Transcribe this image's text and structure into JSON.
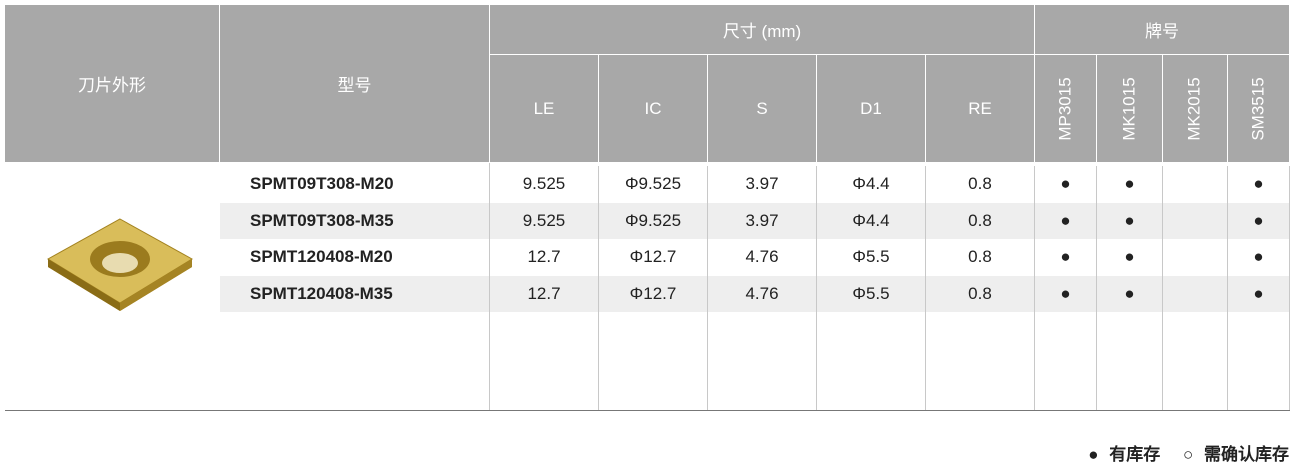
{
  "table": {
    "header": {
      "shape": "刀片外形",
      "model": "型号",
      "size_group": "尺寸 (mm)",
      "grade_group": "牌号",
      "size_columns": [
        "LE",
        "IC",
        "S",
        "D1",
        "RE"
      ],
      "grade_columns": [
        "MP3015",
        "MK1015",
        "MK2015",
        "SM3515"
      ]
    },
    "rows": [
      {
        "model": "SPMT09T308-M20",
        "sizes": [
          "9.525",
          "Φ9.525",
          "3.97",
          "Φ4.4",
          "0.8"
        ],
        "grades": [
          "●",
          "●",
          null,
          "●"
        ]
      },
      {
        "model": "SPMT09T308-M35",
        "sizes": [
          "9.525",
          "Φ9.525",
          "3.97",
          "Φ4.4",
          "0.8"
        ],
        "grades": [
          "●",
          "●",
          null,
          "●"
        ]
      },
      {
        "model": "SPMT120408-M20",
        "sizes": [
          "12.7",
          "Φ12.7",
          "4.76",
          "Φ5.5",
          "0.8"
        ],
        "grades": [
          "●",
          "●",
          null,
          "●"
        ]
      },
      {
        "model": "SPMT120408-M35",
        "sizes": [
          "12.7",
          "Φ12.7",
          "4.76",
          "Φ5.5",
          "0.8"
        ],
        "grades": [
          "●",
          "●",
          null,
          "●"
        ]
      }
    ]
  },
  "legend": {
    "in_stock_mark": "●",
    "in_stock": "有库存",
    "confirm_mark": "○",
    "confirm": "需确认库存"
  }
}
